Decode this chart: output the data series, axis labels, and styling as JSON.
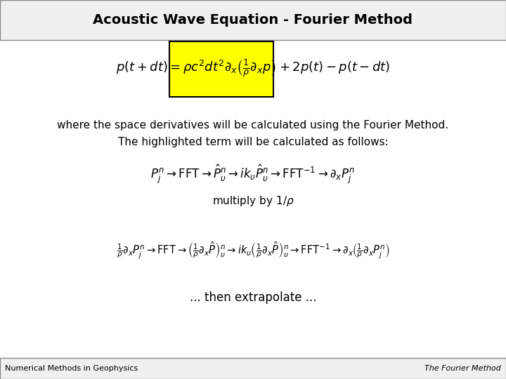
{
  "title": "Acoustic Wave Equation - Fourier Method",
  "footer_left": "Numerical Methods in Geophysics",
  "footer_right": "The Fourier Method",
  "bg_color": "#ffffff",
  "header_bg": "#e8e8e8",
  "header_border": "#888888",
  "eq1": "p(t+dt) = \\rho c^2 dt^2 \\partial_x \\left(\\frac{1}{\\rho}\\partial_x p\\right) + 2p(t) - p(t-dt)",
  "eq1_highlight_color": "#ffff00",
  "text1_line1": "where the space derivatives will be calculated using the Fourier Method.",
  "text1_line2": "The highlighted term will be calculated as follows:",
  "eq2": "P_j^n \\rightarrow \\mathrm{FFT} \\rightarrow \\hat{P}_\\upsilon^n \\rightarrow ik_\\upsilon \\hat{P}_\\upsilon^n \\rightarrow \\mathrm{FFT}^{-1} \\rightarrow \\partial_x P_j^n",
  "text2": "multiply by 1/\\rho",
  "eq3": "\\frac{1}{\\rho}\\partial_x P_j^n \\rightarrow \\mathrm{FFT} \\rightarrow \\left(\\frac{1}{\\rho}\\partial_x \\hat{P}\\right)_\\upsilon^n \\rightarrow ik_\\upsilon \\left(\\frac{1}{\\rho}\\partial_x \\hat{P}\\right)_\\upsilon^n \\rightarrow \\mathrm{FFT}^{-1} \\rightarrow \\partial_x \\left(\\frac{1}{\\rho}\\partial_x P_j^n\\right)",
  "text3": "... then extrapolate ..."
}
